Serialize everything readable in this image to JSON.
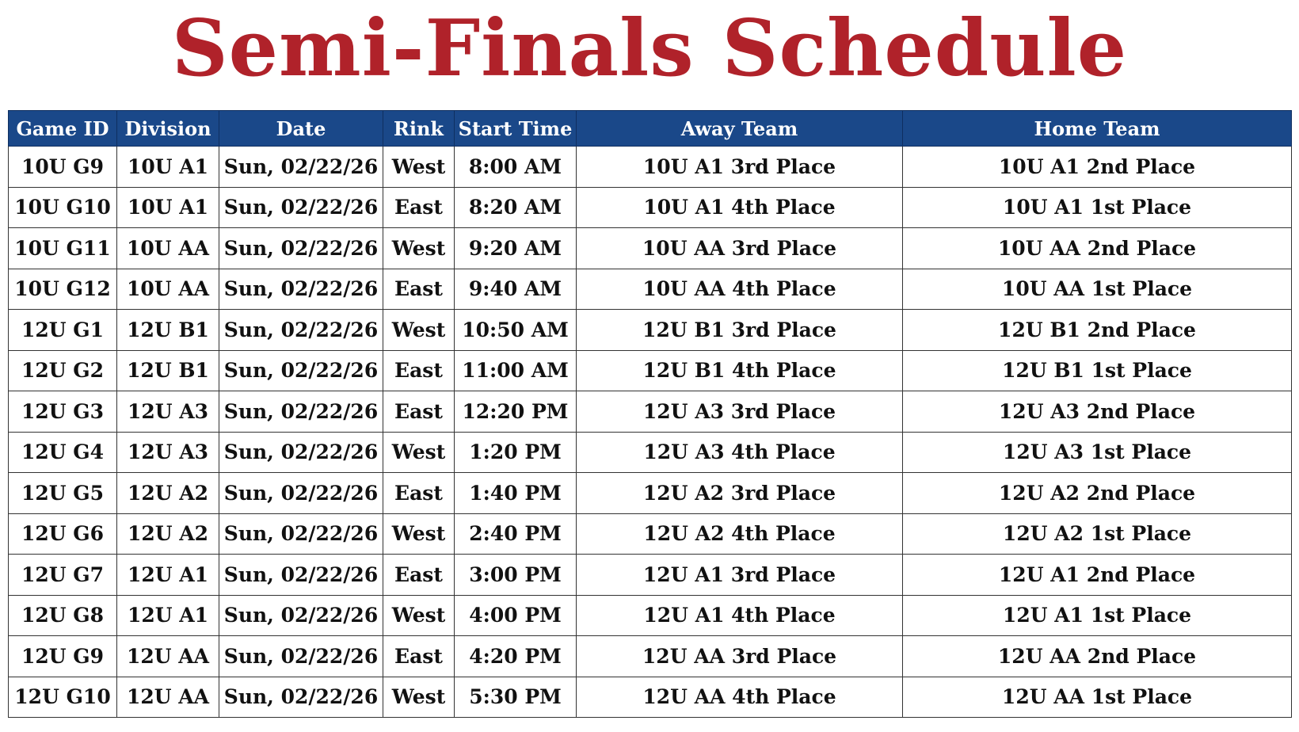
{
  "title": "Semi-Finals Schedule",
  "table": {
    "headers": [
      "Game ID",
      "Division",
      "Date",
      "Rink",
      "Start Time",
      "Away Team",
      "Home Team"
    ],
    "rows": [
      [
        "10U G9",
        "10U A1",
        "Sun, 02/22/26",
        "West",
        "8:00 AM",
        "10U A1 3rd Place",
        "10U A1 2nd Place"
      ],
      [
        "10U G10",
        "10U A1",
        "Sun, 02/22/26",
        "East",
        "8:20 AM",
        "10U A1 4th Place",
        "10U A1 1st Place"
      ],
      [
        "10U G11",
        "10U AA",
        "Sun, 02/22/26",
        "West",
        "9:20 AM",
        "10U AA 3rd Place",
        "10U AA 2nd Place"
      ],
      [
        "10U G12",
        "10U AA",
        "Sun, 02/22/26",
        "East",
        "9:40 AM",
        "10U AA 4th Place",
        "10U AA 1st Place"
      ],
      [
        "12U G1",
        "12U B1",
        "Sun, 02/22/26",
        "West",
        "10:50 AM",
        "12U B1 3rd Place",
        "12U B1 2nd Place"
      ],
      [
        "12U G2",
        "12U B1",
        "Sun, 02/22/26",
        "East",
        "11:00 AM",
        "12U B1 4th Place",
        "12U B1 1st Place"
      ],
      [
        "12U G3",
        "12U A3",
        "Sun, 02/22/26",
        "East",
        "12:20 PM",
        "12U A3 3rd Place",
        "12U A3 2nd Place"
      ],
      [
        "12U G4",
        "12U A3",
        "Sun, 02/22/26",
        "West",
        "1:20 PM",
        "12U A3 4th Place",
        "12U A3 1st Place"
      ],
      [
        "12U G5",
        "12U A2",
        "Sun, 02/22/26",
        "East",
        "1:40 PM",
        "12U A2 3rd Place",
        "12U A2 2nd Place"
      ],
      [
        "12U G6",
        "12U A2",
        "Sun, 02/22/26",
        "West",
        "2:40 PM",
        "12U A2 4th Place",
        "12U A2 1st Place"
      ],
      [
        "12U G7",
        "12U A1",
        "Sun, 02/22/26",
        "East",
        "3:00 PM",
        "12U A1 3rd Place",
        "12U A1 2nd Place"
      ],
      [
        "12U G8",
        "12U A1",
        "Sun, 02/22/26",
        "West",
        "4:00 PM",
        "12U A1 4th Place",
        "12U A1 1st Place"
      ],
      [
        "12U G9",
        "12U AA",
        "Sun, 02/22/26",
        "East",
        "4:20 PM",
        "12U AA 3rd Place",
        "12U AA 2nd Place"
      ],
      [
        "12U G10",
        "12U AA",
        "Sun, 02/22/26",
        "West",
        "5:30 PM",
        "12U AA 4th Place",
        "12U AA 1st Place"
      ]
    ]
  }
}
